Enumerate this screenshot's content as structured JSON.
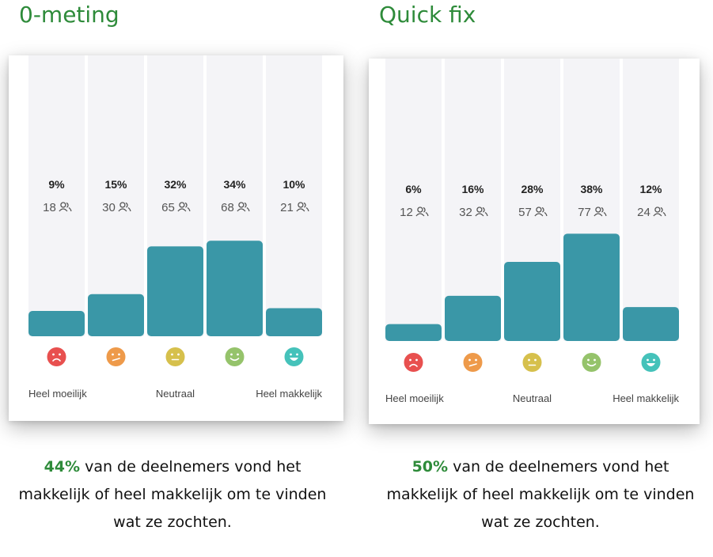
{
  "colors": {
    "title": "#2e8b3a",
    "bar": "#3a97a7",
    "column_bg": "#f4f4f7",
    "text_muted": "#555555",
    "face_colors": [
      "#e8504f",
      "#ee9a4a",
      "#d6c04c",
      "#95c36b",
      "#45c2ba"
    ]
  },
  "icons": {
    "participants": "people-icon",
    "faces": [
      "very-sad-face-icon",
      "sad-face-icon",
      "neutral-face-icon",
      "happy-face-icon",
      "very-happy-face-icon"
    ]
  },
  "chart_data": [
    {
      "type": "bar",
      "title": "0-meting",
      "categories": [
        "",
        "",
        "",
        "",
        ""
      ],
      "values": [
        9,
        15,
        32,
        34,
        10
      ],
      "value_labels": [
        "9%",
        "15%",
        "32%",
        "34%",
        "10%"
      ],
      "counts": [
        18,
        30,
        65,
        68,
        21
      ],
      "scale_labels": {
        "left": "Heel moeilijk",
        "middle": "Neutraal",
        "right": "Heel makkelijk"
      },
      "ylim": [
        0,
        100
      ],
      "summary": {
        "highlight": "44%",
        "text": " van de deelnemers vond het makkelijk of heel makkelijk om te vinden wat ze zochten."
      }
    },
    {
      "type": "bar",
      "title": "Quick fix",
      "categories": [
        "",
        "",
        "",
        "",
        ""
      ],
      "values": [
        6,
        16,
        28,
        38,
        12
      ],
      "value_labels": [
        "6%",
        "16%",
        "28%",
        "38%",
        "12%"
      ],
      "counts": [
        12,
        32,
        57,
        77,
        24
      ],
      "scale_labels": {
        "left": "Heel moeilijk",
        "middle": "Neutraal",
        "right": "Heel makkelijk"
      },
      "ylim": [
        0,
        100
      ],
      "summary": {
        "highlight": "50%",
        "text": " van de deelnemers vond het makkelijk of heel makkelijk om te vinden wat ze zochten."
      }
    }
  ]
}
